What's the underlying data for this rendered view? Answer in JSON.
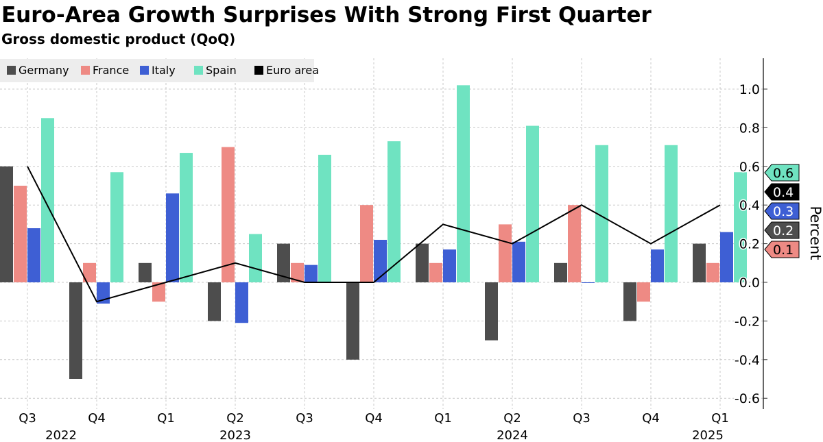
{
  "chart_data": {
    "type": "bar",
    "title": "Euro-Area Growth Surprises With Strong First Quarter",
    "subtitle": "Gross domestic product (QoQ)",
    "ylabel": "Percent",
    "ylim": [
      -0.65,
      1.17
    ],
    "yticks": [
      -0.6,
      -0.4,
      -0.2,
      0.0,
      0.2,
      0.4,
      0.6,
      0.8,
      1.0
    ],
    "ytick_labels": [
      "-0.6",
      "-0.4",
      "-0.2",
      "0.0",
      "0.2",
      "0.4",
      "0.6",
      "0.8",
      "1.0"
    ],
    "grid": true,
    "legend_placement": "top-left",
    "categories": [
      "Q3",
      "Q4",
      "Q1",
      "Q2",
      "Q3",
      "Q4",
      "Q1",
      "Q2",
      "Q3",
      "Q4",
      "Q1"
    ],
    "years": [
      {
        "label": "2022",
        "quarter_index": 0
      },
      {
        "label": "2023",
        "quarter_index": 3
      },
      {
        "label": "2024",
        "quarter_index": 7
      },
      {
        "label": "2025",
        "quarter_index": 10
      }
    ],
    "series": [
      {
        "name": "Germany",
        "kind": "bar",
        "color": "#4d4d4d",
        "values": [
          0.6,
          -0.5,
          0.1,
          -0.2,
          0.2,
          -0.4,
          0.2,
          -0.3,
          0.1,
          -0.2,
          0.2
        ],
        "last_label": "0.2",
        "label_text_color": "#ffffff"
      },
      {
        "name": "France",
        "kind": "bar",
        "color": "#ee8a84",
        "values": [
          0.5,
          0.1,
          -0.1,
          0.7,
          0.1,
          0.4,
          0.1,
          0.3,
          0.4,
          -0.1,
          0.1
        ],
        "last_label": "0.1",
        "label_text_color": "#000000"
      },
      {
        "name": "Italy",
        "kind": "bar",
        "color": "#3e5fd4",
        "values": [
          0.28,
          -0.11,
          0.46,
          -0.21,
          0.09,
          0.22,
          0.17,
          0.21,
          0.0,
          0.17,
          0.26
        ],
        "last_label": "0.3",
        "label_text_color": "#ffffff"
      },
      {
        "name": "Spain",
        "kind": "bar",
        "color": "#6fe3c1",
        "values": [
          0.85,
          0.57,
          0.67,
          0.25,
          0.66,
          0.73,
          1.02,
          0.81,
          0.71,
          0.71,
          0.57
        ],
        "last_label": "0.6",
        "label_text_color": "#000000"
      },
      {
        "name": "Euro area",
        "kind": "line",
        "color": "#000000",
        "values": [
          0.6,
          -0.1,
          0.0,
          0.1,
          0.0,
          0.0,
          0.3,
          0.2,
          0.4,
          0.2,
          0.4
        ],
        "last_label": "0.4",
        "label_text_color": "#ffffff"
      }
    ]
  }
}
